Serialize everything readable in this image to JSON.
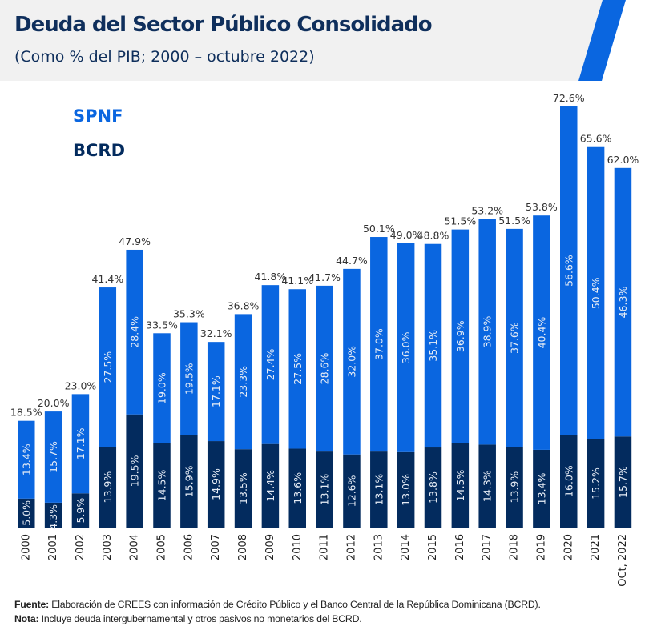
{
  "header": {
    "title": "Deuda del Sector Público Consolidado",
    "subtitle": "(Como % del PIB; 2000 – octubre 2022)"
  },
  "colors": {
    "spnf": "#0a66e0",
    "bcrd": "#032b5e",
    "header_bg": "#f1f1f1",
    "title": "#0f2f5c",
    "accent_stripe": "#0a66e0"
  },
  "legend": [
    {
      "label": "SPNF",
      "color": "#0a66e0"
    },
    {
      "label": "BCRD",
      "color": "#032b5e"
    }
  ],
  "chart_data": {
    "type": "bar",
    "stacked": true,
    "title": "Deuda del Sector Público Consolidado",
    "subtitle": "(Como % del PIB; 2000 – octubre 2022)",
    "xlabel": "",
    "ylabel": "",
    "ylim": [
      0,
      75
    ],
    "grid": false,
    "legend_position": "top-left",
    "categories": [
      "2000",
      "2001",
      "2002",
      "2003",
      "2004",
      "2005",
      "2006",
      "2007",
      "2008",
      "2009",
      "2010",
      "2011",
      "2012",
      "2013",
      "2014",
      "2015",
      "2016",
      "2017",
      "2018",
      "2019",
      "2020",
      "2021",
      "OCt, 2022"
    ],
    "series": [
      {
        "name": "BCRD",
        "values": [
          5.0,
          4.3,
          5.9,
          13.9,
          19.5,
          14.5,
          15.9,
          14.9,
          13.5,
          14.4,
          13.6,
          13.1,
          12.6,
          13.1,
          13.0,
          13.8,
          14.5,
          14.3,
          13.9,
          13.4,
          16.0,
          15.2,
          15.7
        ]
      },
      {
        "name": "SPNF",
        "values": [
          13.4,
          15.7,
          17.1,
          27.5,
          28.4,
          19.0,
          19.5,
          17.1,
          23.3,
          27.4,
          27.5,
          28.6,
          32.0,
          37.0,
          36.0,
          35.1,
          36.9,
          38.9,
          37.6,
          40.4,
          56.6,
          50.4,
          46.3
        ]
      }
    ],
    "totals": [
      18.5,
      20.0,
      23.0,
      41.4,
      47.9,
      33.5,
      35.3,
      32.1,
      36.8,
      41.8,
      41.1,
      41.7,
      44.7,
      50.1,
      49.0,
      48.8,
      51.5,
      53.2,
      51.5,
      53.8,
      72.6,
      65.6,
      62.0
    ],
    "value_suffix": "%"
  },
  "footer": {
    "source_label": "Fuente:",
    "source_text": " Elaboración de CREES con información de Crédito Público y el Banco Central de la República Dominicana (BCRD).",
    "note_label": "Nota:",
    "note_text": " Incluye deuda intergubernamental y otros pasivos no monetarios del BCRD."
  }
}
